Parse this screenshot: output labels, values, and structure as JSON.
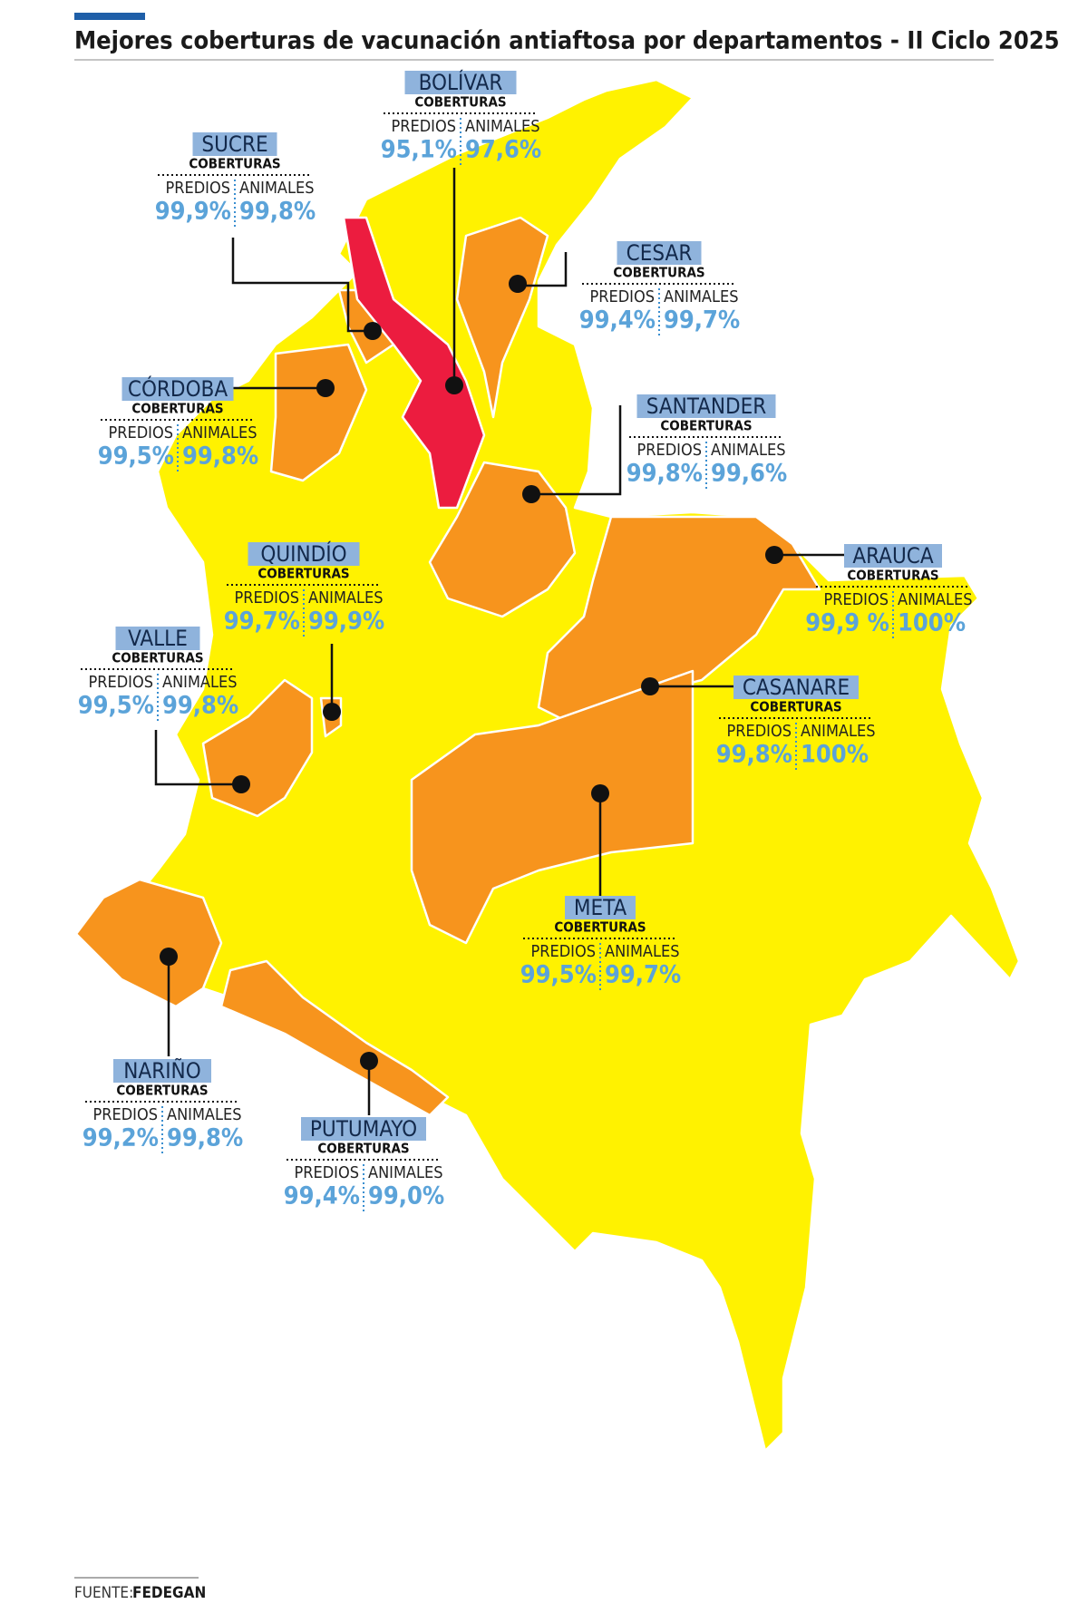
{
  "title": "Mejores coberturas de vacunación antiaftosa por departamentos - II Ciclo 2025",
  "departments": [
    {
      "name": "BOLÍVAR",
      "subtitle": "COBERTURAS",
      "predios_label": "PREDIOS",
      "animales_label": "ANIMALES",
      "predios": "95,1%",
      "animales": "97,6%"
    },
    {
      "name": "SUCRE",
      "subtitle": "COBERTURAS",
      "predios_label": "PREDIOS",
      "animales_label": "ANIMALES",
      "predios": "99,9%",
      "animales": "99,8%"
    },
    {
      "name": "CESAR",
      "subtitle": "COBERTURAS",
      "predios_label": "PREDIOS",
      "animales_label": "ANIMALES",
      "predios": "99,4%",
      "animales": "99,7%"
    },
    {
      "name": "CÓRDOBA",
      "subtitle": "COBERTURAS",
      "predios_label": "PREDIOS",
      "animales_label": "ANIMALES",
      "predios": "99,5%",
      "animales": "99,8%"
    },
    {
      "name": "SANTANDER",
      "subtitle": "COBERTURAS",
      "predios_label": "PREDIOS",
      "animales_label": "ANIMALES",
      "predios": "99,8%",
      "animales": "99,6%"
    },
    {
      "name": "QUINDÍO",
      "subtitle": "COBERTURAS",
      "predios_label": "PREDIOS",
      "animales_label": "ANIMALES",
      "predios": "99,7%",
      "animales": "99,9%"
    },
    {
      "name": "ARAUCA",
      "subtitle": "COBERTURAS",
      "predios_label": "PREDIOS",
      "animales_label": "ANIMALES",
      "predios": "99,9 %",
      "animales": "100%"
    },
    {
      "name": "VALLE",
      "subtitle": "COBERTURAS",
      "predios_label": "PREDIOS",
      "animales_label": "ANIMALES",
      "predios": "99,5%",
      "animales": "99,8%"
    },
    {
      "name": "CASANARE",
      "subtitle": "COBERTURAS",
      "predios_label": "PREDIOS",
      "animales_label": "ANIMALES",
      "predios": "99,8%",
      "animales": "100%"
    },
    {
      "name": "META",
      "subtitle": "COBERTURAS",
      "predios_label": "PREDIOS",
      "animales_label": "ANIMALES",
      "predios": "99,5%",
      "animales": "99,7%"
    },
    {
      "name": "NARIÑO",
      "subtitle": "COBERTURAS",
      "predios_label": "PREDIOS",
      "animales_label": "ANIMALES",
      "predios": "99,2%",
      "animales": "99,8%"
    },
    {
      "name": "PUTUMAYO",
      "subtitle": "COBERTURAS",
      "predios_label": "PREDIOS",
      "animales_label": "ANIMALES",
      "predios": "99,4%",
      "animales": "99,0%"
    }
  ],
  "source": {
    "label": "FUENTE:",
    "name": "FEDEGAN"
  }
}
